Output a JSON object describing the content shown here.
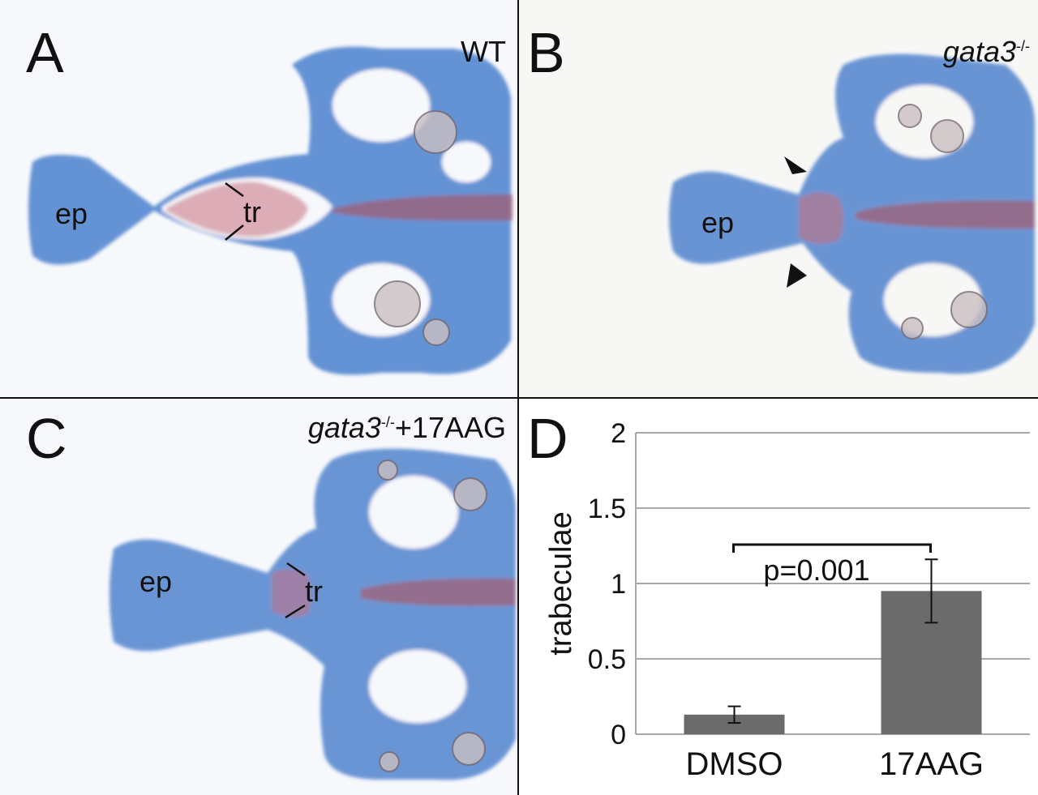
{
  "panels": {
    "A": {
      "letter": "A",
      "genotype": "WT",
      "labels": {
        "ep": "ep",
        "tr": "tr"
      }
    },
    "B": {
      "letter": "B",
      "genotype": "gata3",
      "superscript": "-/-",
      "labels": {
        "ep": "ep"
      }
    },
    "C": {
      "letter": "C",
      "genotype": "gata3",
      "superscript": "-/-",
      "suffix": "+17AAG",
      "labels": {
        "ep": "ep",
        "tr": "tr"
      }
    },
    "D": {
      "letter": "D"
    }
  },
  "colors": {
    "cartilage": "#3f79cb",
    "bone": "#c46a7a",
    "bar": "#6b6b6b",
    "grid": "#a8a8a8"
  },
  "chart_data": {
    "type": "bar",
    "categories": [
      "DMSO",
      "17AAG"
    ],
    "values": [
      0.13,
      0.95
    ],
    "error": [
      0.055,
      0.21
    ],
    "ylabel": "trabeculae",
    "ylim": [
      0,
      2
    ],
    "yticks": [
      "0",
      "0.5",
      "1",
      "1.5",
      "2"
    ],
    "annotation": "p=0.001",
    "grid": true
  }
}
